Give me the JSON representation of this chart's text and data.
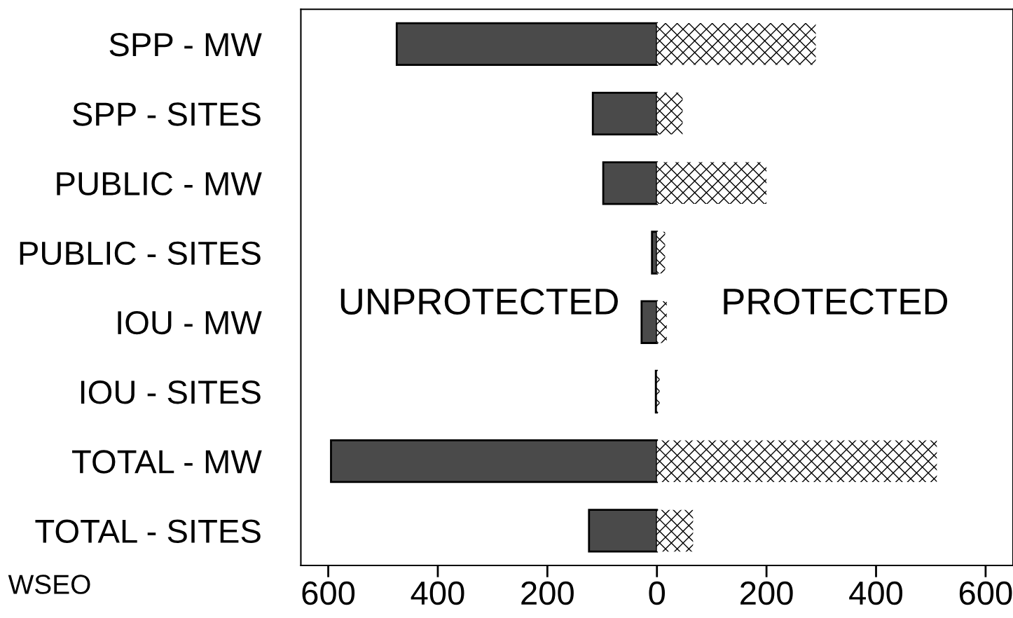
{
  "chart_data": {
    "type": "bar",
    "orientation": "horizontal",
    "stacked": true,
    "categories": [
      "SPP - MW",
      "SPP - SITES",
      "PUBLIC - MW",
      "PUBLIC - SITES",
      "IOU - MW",
      "IOU - SITES",
      "TOTAL - MW",
      "TOTAL - SITES"
    ],
    "series": [
      {
        "name": "UNPROTECTED",
        "color": "#4a4a4a",
        "values": [
          -475,
          -117,
          -98,
          -9,
          -28,
          -2,
          -595,
          -124
        ]
      },
      {
        "name": "PROTECTED",
        "color": "#ffffff",
        "values": [
          290,
          47,
          200,
          15,
          18,
          5,
          511,
          66
        ]
      }
    ],
    "xlim": [
      -650,
      650
    ],
    "xticks": [
      {
        "value": -600,
        "label": "600"
      },
      {
        "value": -400,
        "label": "400"
      },
      {
        "value": -200,
        "label": "200"
      },
      0,
      200,
      400,
      600
    ],
    "annotations": [
      "WSEO"
    ],
    "grid": false,
    "legend": false
  }
}
